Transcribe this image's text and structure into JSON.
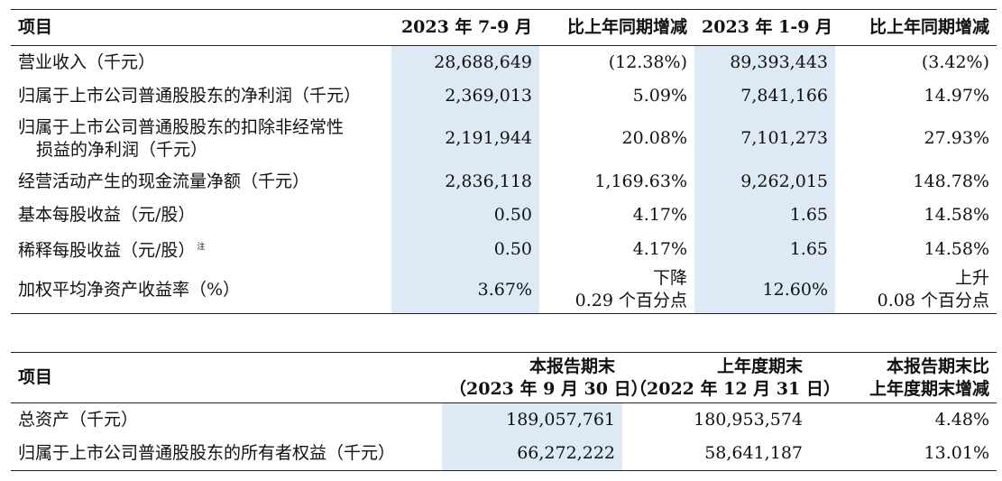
{
  "table1": {
    "headers": [
      "项目",
      "2023 年 7-9 月",
      "比上年同期增减",
      "2023 年 1-9 月",
      "比上年同期增减"
    ],
    "rows": [
      {
        "label": "营业收入（千元）",
        "q3": "28,688,649",
        "q3_change": "(12.38%)",
        "ytd": "89,393,443",
        "ytd_change": "(3.42%)"
      },
      {
        "label": "归属于上市公司普通股股东的净利润（千元）",
        "q3": "2,369,013",
        "q3_change": "5.09%",
        "ytd": "7,841,166",
        "ytd_change": "14.97%"
      },
      {
        "label_line1": "归属于上市公司普通股股东的扣除非经常性",
        "label_line2": "损益的净利润（千元）",
        "q3": "2,191,944",
        "q3_change": "20.08%",
        "ytd": "7,101,273",
        "ytd_change": "27.93%"
      },
      {
        "label": "经营活动产生的现金流量净额（千元）",
        "q3": "2,836,118",
        "q3_change": "1,169.63%",
        "ytd": "9,262,015",
        "ytd_change": "148.78%"
      },
      {
        "label": "基本每股收益（元/股）",
        "q3": "0.50",
        "q3_change": "4.17%",
        "ytd": "1.65",
        "ytd_change": "14.58%"
      },
      {
        "label": "稀释每股收益（元/股）",
        "note": "注",
        "q3": "0.50",
        "q3_change": "4.17%",
        "ytd": "1.65",
        "ytd_change": "14.58%"
      },
      {
        "label": "加权平均净资产收益率（%）",
        "q3": "3.67%",
        "q3_change_line1": "下降",
        "q3_change_line2": "0.29 个百分点",
        "ytd": "12.60%",
        "ytd_change_line1": "上升",
        "ytd_change_line2": "0.08 个百分点"
      }
    ]
  },
  "table2": {
    "headers": {
      "item": "项目",
      "current_line1": "本报告期末",
      "current_line2": "（2023 年 9 月 30 日）",
      "prior_line1": "上年度期末",
      "prior_line2": "（2022 年 12 月 31 日）",
      "change_line1": "本报告期末比",
      "change_line2": "上年度期末增减"
    },
    "rows": [
      {
        "label": "总资产（千元）",
        "current": "189,057,761",
        "prior": "180,953,574",
        "change": "4.48%"
      },
      {
        "label": "归属于上市公司普通股股东的所有者权益（千元）",
        "current": "66,272,222",
        "prior": "58,641,187",
        "change": "13.01%"
      }
    ]
  },
  "colors": {
    "highlight": "#dde9f5",
    "rule": "#222222"
  }
}
